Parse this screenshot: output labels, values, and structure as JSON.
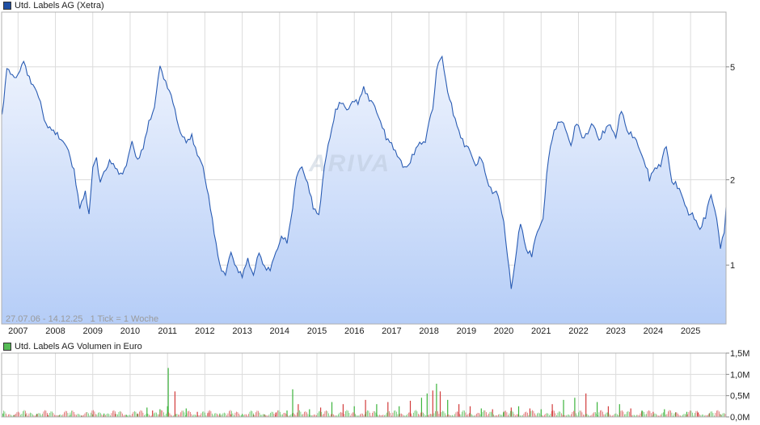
{
  "price_chart": {
    "legend_label": "Utd. Labels AG (Xetra)",
    "info": "27.07.06 - 14.12.25   1 Tick = 1 Woche",
    "watermark": "ARIVA",
    "colors": {
      "line": "#2a5cb3",
      "fill_top": "#eef3fd",
      "fill_bottom": "#b5cdf7",
      "legend": "#1f4fa3"
    }
  },
  "volume_chart": {
    "legend_label": "Utd. Labels AG Volumen in Euro",
    "colors": {
      "up": "#3cb43c",
      "down": "#d23c3c",
      "legend": "#55bb55"
    }
  },
  "chart_data": [
    {
      "type": "line",
      "title": "Utd. Labels AG (Xetra)",
      "y_scale": "log",
      "ylim": [
        0.62,
        7.8
      ],
      "xlim": [
        2006.56,
        2025.95
      ],
      "y_ticks": [
        1,
        2,
        5
      ],
      "y_tick_labels": [
        "1",
        "2",
        "5"
      ],
      "x_ticks": [
        2007,
        2008,
        2009,
        2010,
        2011,
        2012,
        2013,
        2014,
        2015,
        2016,
        2017,
        2018,
        2019,
        2020,
        2021,
        2022,
        2023,
        2024,
        2025
      ],
      "x_tick_labels": [
        "2007",
        "2008",
        "2009",
        "2010",
        "2011",
        "2012",
        "2013",
        "2014",
        "2015",
        "2016",
        "2017",
        "2018",
        "2019",
        "2020",
        "2021",
        "2022",
        "2023",
        "2024",
        "2025"
      ],
      "grid": true,
      "legend_position": "top-left",
      "series": [
        {
          "name": "Utd. Labels AG (Xetra)",
          "x": [
            2006.57,
            2006.7,
            2006.85,
            2007.0,
            2007.15,
            2007.3,
            2007.45,
            2007.6,
            2007.75,
            2007.9,
            2008.05,
            2008.2,
            2008.35,
            2008.5,
            2008.65,
            2008.8,
            2008.9,
            2009.0,
            2009.1,
            2009.2,
            2009.3,
            2009.45,
            2009.6,
            2009.75,
            2009.9,
            2010.05,
            2010.2,
            2010.35,
            2010.5,
            2010.65,
            2010.8,
            2010.95,
            2011.05,
            2011.2,
            2011.35,
            2011.5,
            2011.65,
            2011.8,
            2011.95,
            2012.1,
            2012.25,
            2012.4,
            2012.55,
            2012.7,
            2012.85,
            2013.0,
            2013.15,
            2013.3,
            2013.45,
            2013.6,
            2013.75,
            2013.9,
            2014.05,
            2014.2,
            2014.3,
            2014.45,
            2014.6,
            2014.75,
            2014.9,
            2015.05,
            2015.2,
            2015.35,
            2015.5,
            2015.65,
            2015.8,
            2015.95,
            2016.1,
            2016.25,
            2016.4,
            2016.55,
            2016.7,
            2016.85,
            2017.0,
            2017.15,
            2017.3,
            2017.45,
            2017.6,
            2017.75,
            2017.9,
            2018.0,
            2018.1,
            2018.2,
            2018.35,
            2018.5,
            2018.65,
            2018.8,
            2018.95,
            2019.1,
            2019.25,
            2019.4,
            2019.55,
            2019.7,
            2019.85,
            2020.0,
            2020.1,
            2020.2,
            2020.3,
            2020.45,
            2020.6,
            2020.75,
            2020.9,
            2021.05,
            2021.2,
            2021.35,
            2021.5,
            2021.65,
            2021.8,
            2021.95,
            2022.1,
            2022.25,
            2022.4,
            2022.55,
            2022.7,
            2022.85,
            2023.0,
            2023.15,
            2023.3,
            2023.45,
            2023.6,
            2023.75,
            2023.9,
            2024.05,
            2024.2,
            2024.35,
            2024.5,
            2024.65,
            2024.8,
            2024.95,
            2025.1,
            2025.25,
            2025.4,
            2025.55,
            2025.7,
            2025.8,
            2025.9,
            2025.95
          ],
          "y": [
            3.4,
            5.0,
            4.6,
            4.8,
            5.2,
            4.6,
            4.3,
            3.7,
            3.2,
            3.0,
            2.9,
            2.8,
            2.5,
            2.2,
            1.6,
            1.8,
            1.55,
            2.2,
            2.4,
            2.0,
            2.1,
            2.4,
            2.2,
            2.1,
            2.3,
            2.7,
            2.4,
            2.6,
            3.2,
            3.7,
            5.0,
            4.5,
            4.2,
            3.5,
            3.0,
            2.7,
            2.9,
            2.5,
            2.2,
            1.8,
            1.3,
            1.0,
            0.95,
            1.1,
            1.0,
            0.92,
            1.05,
            0.95,
            1.1,
            1.0,
            0.98,
            1.1,
            1.3,
            1.2,
            1.45,
            2.1,
            2.2,
            2.0,
            1.6,
            1.5,
            2.3,
            2.8,
            3.6,
            3.8,
            3.5,
            3.9,
            3.7,
            4.3,
            3.9,
            3.6,
            3.3,
            2.8,
            2.7,
            2.5,
            2.2,
            2.3,
            2.5,
            2.7,
            2.8,
            3.2,
            3.6,
            5.0,
            5.4,
            4.2,
            3.4,
            3.0,
            2.7,
            2.5,
            2.3,
            2.4,
            2.0,
            1.85,
            1.75,
            1.45,
            1.1,
            0.82,
            1.05,
            1.4,
            1.15,
            1.1,
            1.3,
            1.5,
            2.4,
            3.0,
            3.3,
            3.0,
            2.7,
            3.2,
            2.8,
            3.0,
            3.1,
            2.8,
            3.0,
            3.1,
            2.9,
            3.5,
            3.0,
            2.9,
            2.6,
            2.4,
            2.0,
            2.2,
            2.3,
            2.6,
            2.0,
            1.9,
            1.7,
            1.55,
            1.45,
            1.35,
            1.5,
            1.75,
            1.5,
            1.15,
            1.3,
            1.6
          ]
        }
      ]
    },
    {
      "type": "bar",
      "title": "Utd. Labels AG Volumen in Euro",
      "ylim": [
        0,
        1.5
      ],
      "y_ticks": [
        0,
        0.5,
        1.0,
        1.5
      ],
      "y_tick_labels": [
        "0,0M",
        "0,5M",
        "1,0M",
        "1,5M"
      ],
      "unit": "M Euro",
      "grid": true,
      "legend_position": "top-left",
      "series": [
        {
          "name": "Utd. Labels AG Volumen in Euro",
          "x": [
            2006.6,
            2006.9,
            2007.2,
            2007.5,
            2007.8,
            2008.1,
            2008.4,
            2008.7,
            2009.0,
            2009.3,
            2009.6,
            2009.9,
            2010.2,
            2010.45,
            2010.6,
            2010.8,
            2011.0,
            2011.02,
            2011.2,
            2011.5,
            2011.8,
            2012.1,
            2012.4,
            2012.7,
            2013.0,
            2013.3,
            2013.6,
            2013.9,
            2014.2,
            2014.35,
            2014.5,
            2014.8,
            2015.1,
            2015.4,
            2015.7,
            2016.0,
            2016.3,
            2016.6,
            2016.9,
            2017.2,
            2017.5,
            2017.8,
            2017.95,
            2018.1,
            2018.2,
            2018.3,
            2018.5,
            2018.8,
            2019.1,
            2019.4,
            2019.7,
            2020.0,
            2020.2,
            2020.4,
            2020.7,
            2021.0,
            2021.3,
            2021.6,
            2021.9,
            2022.2,
            2022.5,
            2022.8,
            2023.1,
            2023.4,
            2023.7,
            2024.0,
            2024.3,
            2024.6,
            2024.9,
            2025.2,
            2025.5,
            2025.8
          ],
          "values": [
            0.08,
            0.05,
            0.06,
            0.07,
            0.05,
            0.04,
            0.05,
            0.03,
            0.06,
            0.08,
            0.07,
            0.05,
            0.08,
            0.22,
            0.15,
            0.18,
            0.25,
            1.15,
            0.6,
            0.2,
            0.12,
            0.1,
            0.08,
            0.06,
            0.07,
            0.05,
            0.06,
            0.1,
            0.15,
            0.65,
            0.3,
            0.18,
            0.22,
            0.35,
            0.3,
            0.25,
            0.4,
            0.3,
            0.35,
            0.25,
            0.38,
            0.45,
            0.55,
            0.62,
            0.78,
            0.6,
            0.4,
            0.3,
            0.25,
            0.2,
            0.18,
            0.12,
            0.22,
            0.25,
            0.2,
            0.18,
            0.3,
            0.4,
            0.45,
            0.55,
            0.35,
            0.25,
            0.3,
            0.2,
            0.15,
            0.12,
            0.18,
            0.1,
            0.12,
            0.1,
            0.08,
            0.06
          ],
          "direction": [
            "up",
            "down",
            "up",
            "up",
            "down",
            "down",
            "up",
            "down",
            "up",
            "up",
            "down",
            "up",
            "down",
            "up",
            "down",
            "up",
            "up",
            "up",
            "down",
            "up",
            "down",
            "down",
            "up",
            "down",
            "up",
            "down",
            "up",
            "down",
            "up",
            "up",
            "down",
            "up",
            "down",
            "up",
            "down",
            "up",
            "down",
            "up",
            "down",
            "up",
            "down",
            "up",
            "up",
            "down",
            "up",
            "down",
            "up",
            "down",
            "down",
            "up",
            "down",
            "up",
            "down",
            "up",
            "down",
            "up",
            "down",
            "up",
            "up",
            "down",
            "up",
            "down",
            "up",
            "down",
            "up",
            "down",
            "up",
            "down",
            "up",
            "down",
            "up",
            "down"
          ]
        }
      ]
    }
  ]
}
